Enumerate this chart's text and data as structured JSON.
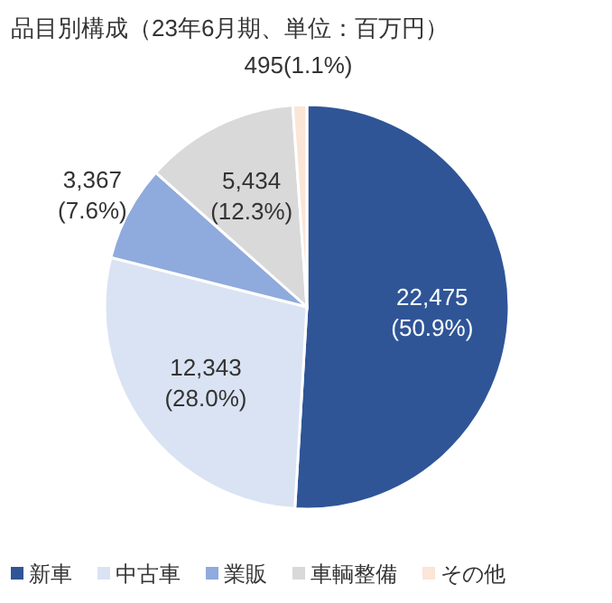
{
  "chart_data": {
    "type": "pie",
    "title": "品目別構成（23年6月期、単位：百万円）",
    "categories": [
      "新車",
      "中古車",
      "業販",
      "車輌整備",
      "その他"
    ],
    "values": [
      22475,
      12343,
      3367,
      5434,
      495
    ],
    "colors": [
      "#2f5597",
      "#dae3f3",
      "#8faadc",
      "#d9d9d9",
      "#fbe5d6"
    ],
    "value_labels": [
      "22,475\n(50.9%)",
      "12,343\n(28.0%)",
      "3,367\n(7.6%)",
      "5,434\n(12.3%)",
      "495(1.1%)"
    ],
    "legend": "bottom"
  }
}
